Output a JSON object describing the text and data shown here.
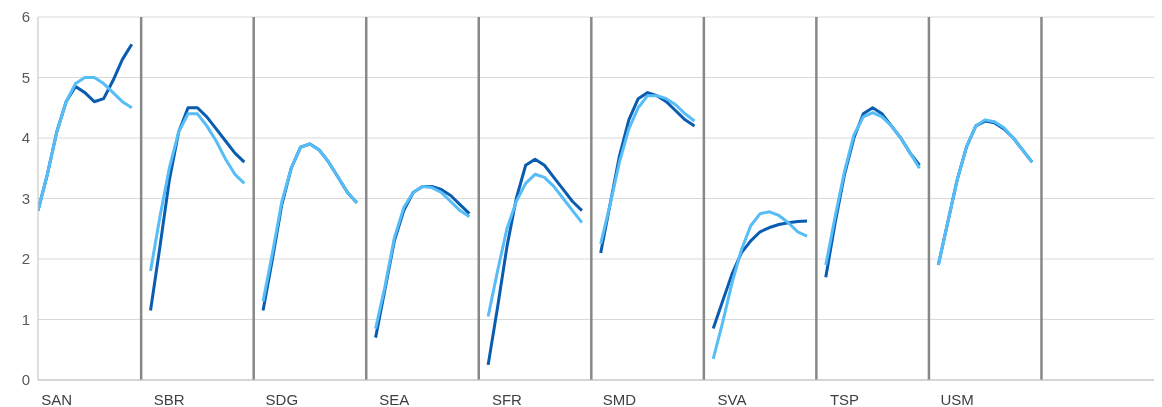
{
  "chart_data": {
    "type": "line",
    "categories": [
      null,
      null,
      "SAN",
      null,
      null,
      null,
      null,
      null,
      null,
      null,
      null,
      null,
      null,
      null,
      "SBR",
      null,
      null,
      null,
      null,
      null,
      null,
      null,
      null,
      null,
      null,
      null,
      "SDG",
      null,
      null,
      null,
      null,
      null,
      null,
      null,
      null,
      null,
      null,
      null,
      "SEA",
      null,
      null,
      null,
      null,
      null,
      null,
      null,
      null,
      null,
      null,
      null,
      "SFR",
      null,
      null,
      null,
      null,
      null,
      null,
      null,
      null,
      null,
      null,
      null,
      "SMD",
      null,
      null,
      null,
      null,
      null,
      null,
      null,
      null,
      null,
      null,
      null,
      "SVA",
      null,
      null,
      null,
      null,
      null,
      null,
      null,
      null,
      null,
      null,
      null,
      "TSP",
      null,
      null,
      null,
      null,
      null,
      null,
      null,
      null,
      null,
      null,
      null,
      "USM",
      null,
      null,
      null,
      null,
      null,
      null,
      null,
      null,
      null,
      null,
      null,
      null,
      null,
      null,
      null,
      null,
      null,
      null,
      null,
      null,
      null
    ],
    "series": [
      {
        "color": "#0a5cb0",
        "values": [
          2.8,
          3.4,
          4.1,
          4.6,
          4.85,
          4.75,
          4.6,
          4.65,
          4.95,
          5.3,
          5.55,
          null,
          1.15,
          2.2,
          3.3,
          4.1,
          4.5,
          4.5,
          4.35,
          4.15,
          3.95,
          3.75,
          3.6,
          null,
          1.15,
          2.0,
          2.9,
          3.5,
          3.85,
          3.9,
          3.8,
          3.6,
          3.35,
          3.1,
          2.93,
          null,
          0.7,
          1.5,
          2.3,
          2.8,
          3.1,
          3.2,
          3.2,
          3.15,
          3.05,
          2.9,
          2.75,
          null,
          0.25,
          1.2,
          2.2,
          3.0,
          3.55,
          3.65,
          3.55,
          3.35,
          3.15,
          2.95,
          2.8,
          null,
          2.1,
          2.9,
          3.7,
          4.3,
          4.65,
          4.75,
          4.7,
          4.6,
          4.45,
          4.3,
          4.2,
          null,
          0.85,
          1.3,
          1.75,
          2.1,
          2.3,
          2.45,
          2.52,
          2.57,
          2.6,
          2.62,
          2.63,
          null,
          1.7,
          2.6,
          3.4,
          4.0,
          4.4,
          4.5,
          4.4,
          4.2,
          4.0,
          3.75,
          3.55,
          null,
          1.9,
          2.6,
          3.3,
          3.85,
          4.2,
          4.28,
          4.25,
          4.15,
          4.0,
          3.8,
          3.6,
          null,
          null,
          null,
          null,
          null,
          null,
          null,
          null,
          null,
          null,
          null,
          null,
          null
        ]
      },
      {
        "color": "#56bdf7",
        "values": [
          2.8,
          3.4,
          4.1,
          4.6,
          4.9,
          5.0,
          5.0,
          4.9,
          4.75,
          4.6,
          4.5,
          null,
          1.8,
          2.7,
          3.5,
          4.1,
          4.4,
          4.4,
          4.2,
          3.95,
          3.65,
          3.4,
          3.25,
          null,
          1.3,
          2.1,
          2.95,
          3.5,
          3.85,
          3.9,
          3.8,
          3.6,
          3.35,
          3.1,
          2.93,
          null,
          0.85,
          1.55,
          2.35,
          2.85,
          3.1,
          3.2,
          3.18,
          3.1,
          2.95,
          2.8,
          2.7,
          null,
          1.05,
          1.8,
          2.5,
          2.95,
          3.25,
          3.4,
          3.35,
          3.2,
          3.0,
          2.8,
          2.6,
          null,
          2.25,
          2.9,
          3.6,
          4.15,
          4.5,
          4.7,
          4.7,
          4.65,
          4.55,
          4.4,
          4.28,
          null,
          0.35,
          0.95,
          1.6,
          2.15,
          2.55,
          2.75,
          2.78,
          2.72,
          2.6,
          2.45,
          2.38,
          null,
          1.9,
          2.7,
          3.45,
          4.05,
          4.35,
          4.42,
          4.35,
          4.2,
          4.0,
          3.75,
          3.5,
          null,
          1.9,
          2.6,
          3.3,
          3.85,
          4.2,
          4.3,
          4.27,
          4.17,
          4.0,
          3.8,
          3.6,
          null,
          null,
          null,
          null,
          null,
          null,
          null,
          null,
          null,
          null,
          null,
          null,
          null
        ]
      }
    ],
    "ylim": [
      0,
      6
    ],
    "yticks": [
      0,
      1,
      2,
      3,
      4,
      5,
      6
    ],
    "grid": true
  }
}
